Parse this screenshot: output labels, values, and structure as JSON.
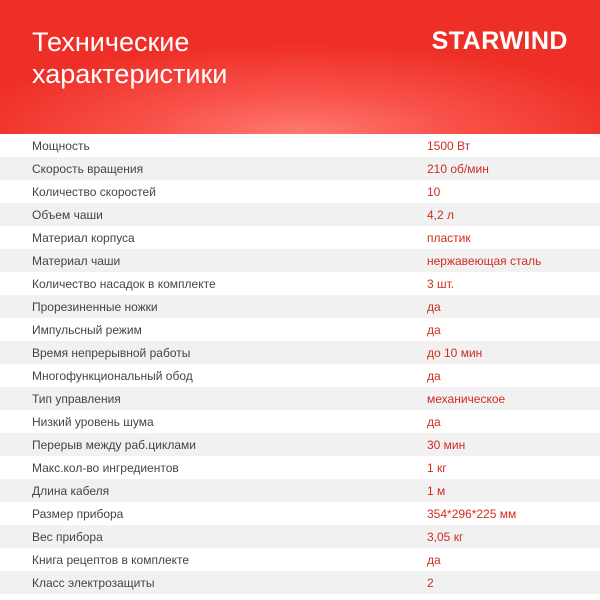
{
  "header": {
    "title_line1": "Технические",
    "title_line2": "характеристики",
    "brand": "STARWIND"
  },
  "colors": {
    "accent": "#ee2f27",
    "value_text": "#d22b22"
  },
  "specs": [
    {
      "label": "Мощность",
      "value": "1500 Вт"
    },
    {
      "label": "Скорость вращения",
      "value": "210 об/мин"
    },
    {
      "label": "Количество скоростей",
      "value": "10"
    },
    {
      "label": "Объем чаши",
      "value": "4,2 л"
    },
    {
      "label": "Материал корпуса",
      "value": "пластик"
    },
    {
      "label": "Материал чаши",
      "value": "нержавеющая сталь"
    },
    {
      "label": "Количество насадок в комплекте",
      "value": "3 шт."
    },
    {
      "label": "Прорезиненные ножки",
      "value": "да"
    },
    {
      "label": "Импульсный режим",
      "value": "да"
    },
    {
      "label": "Время непрерывной работы",
      "value": "до 10 мин"
    },
    {
      "label": "Многофункциональный обод",
      "value": "да"
    },
    {
      "label": "Тип управления",
      "value": "механическое"
    },
    {
      "label": "Низкий уровень шума",
      "value": "да"
    },
    {
      "label": "Перерыв между раб.циклами",
      "value": "30 мин"
    },
    {
      "label": "Макс.кол-во ингредиентов",
      "value": "1 кг"
    },
    {
      "label": "Длина кабеля",
      "value": "1 м"
    },
    {
      "label": "Размер прибора",
      "value": "354*296*225 мм"
    },
    {
      "label": "Вес прибора",
      "value": "3,05 кг"
    },
    {
      "label": "Книга рецептов в комплекте",
      "value": "да"
    },
    {
      "label": "Класс электрозащиты",
      "value": "2"
    }
  ]
}
